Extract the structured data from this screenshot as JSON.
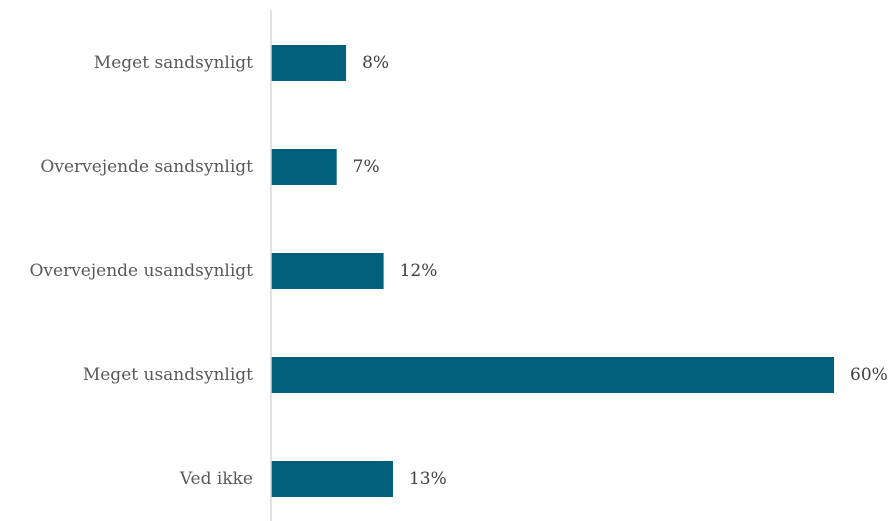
{
  "chart_data": {
    "type": "bar",
    "orientation": "horizontal",
    "categories": [
      "Meget sandsynligt",
      "Overvejende sandsynligt",
      "Overvejende usandsynligt",
      "Meget usandsynligt",
      "Ved ikke"
    ],
    "values": [
      8,
      7,
      12,
      60,
      13
    ],
    "value_labels": [
      "8%",
      "7%",
      "12%",
      "60%",
      "13%"
    ],
    "xlim": [
      0,
      60
    ],
    "grid": false,
    "legend": "none",
    "colors": {
      "bar": "#005f7a",
      "axis": "#d9d9d9"
    }
  }
}
